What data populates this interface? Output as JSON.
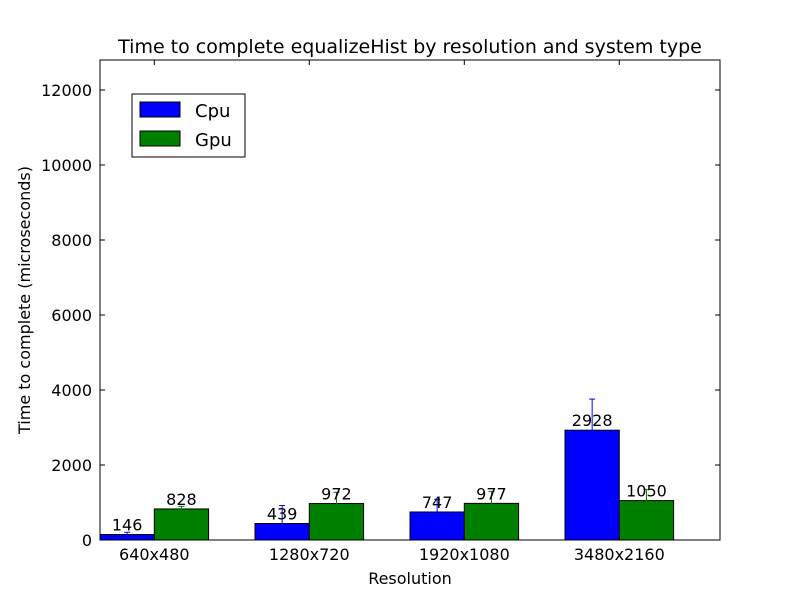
{
  "chart_data": {
    "type": "bar",
    "title": "Time to complete equalizeHist by resolution and system type",
    "xlabel": "Resolution",
    "ylabel": "Time to complete (microseconds)",
    "ylim": [
      0,
      12800
    ],
    "yticks": [
      0,
      2000,
      4000,
      6000,
      8000,
      10000,
      12000
    ],
    "categories": [
      "640x480",
      "1280x720",
      "1920x1080",
      "3480x2160"
    ],
    "series": [
      {
        "name": "Cpu",
        "color": "#0000ff",
        "values": [
          146,
          439,
          747,
          2928
        ],
        "error": [
          60,
          480,
          340,
          830
        ],
        "labels": [
          "146",
          "439",
          "747",
          "2928"
        ]
      },
      {
        "name": "Gpu",
        "color": "#008000",
        "values": [
          828,
          972,
          977,
          1050
        ],
        "error": [
          70,
          300,
          320,
          300
        ],
        "labels": [
          "828",
          "972",
          "977",
          "1050"
        ]
      }
    ],
    "legend_position": "top-left",
    "grid": false
  }
}
